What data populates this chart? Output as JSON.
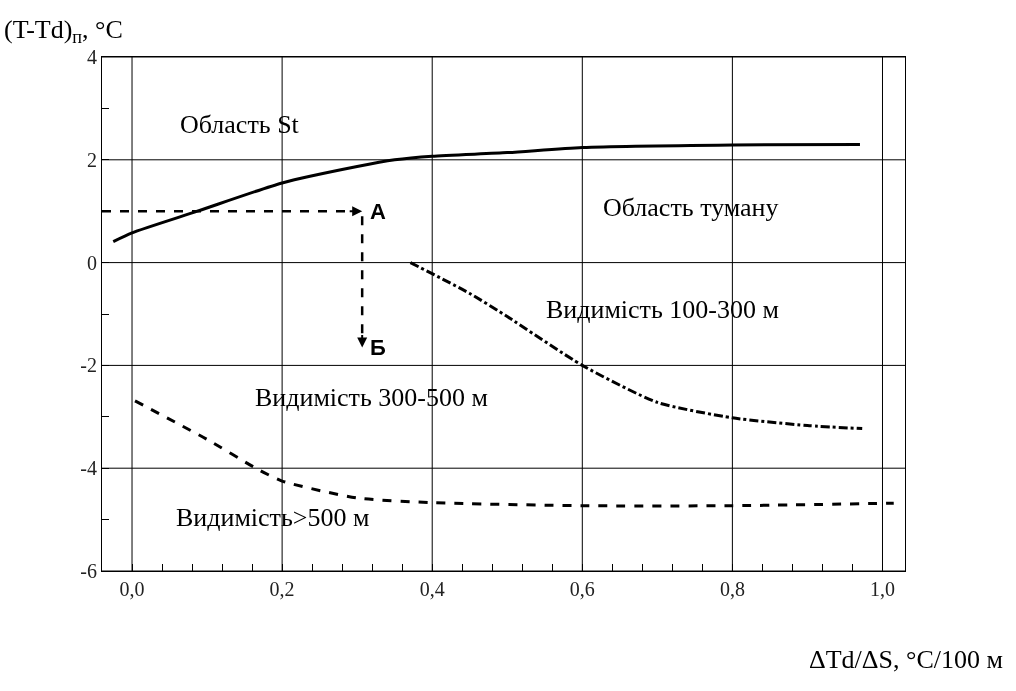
{
  "chart_data": {
    "type": "line",
    "xlabel": "ΔTd/ΔS, °C/100 м",
    "ylabel": "(T-Td)$_{п}$, °C",
    "xlim": [
      -0.04,
      1.03
    ],
    "ylim": [
      -6,
      4
    ],
    "xticks": [
      {
        "value": 0,
        "label": "0,0"
      },
      {
        "value": 0.04,
        "label": null
      },
      {
        "value": 0.08,
        "label": null
      },
      {
        "value": 0.12,
        "label": null
      },
      {
        "value": 0.16,
        "label": null
      },
      {
        "value": 0.2,
        "label": "0,2"
      },
      {
        "value": 0.24,
        "label": null
      },
      {
        "value": 0.28,
        "label": null
      },
      {
        "value": 0.32,
        "label": null
      },
      {
        "value": 0.36,
        "label": null
      },
      {
        "value": 0.4,
        "label": "0,4"
      },
      {
        "value": 0.44,
        "label": null
      },
      {
        "value": 0.48,
        "label": null
      },
      {
        "value": 0.52,
        "label": null
      },
      {
        "value": 0.56,
        "label": null
      },
      {
        "value": 0.6,
        "label": "0,6"
      },
      {
        "value": 0.64,
        "label": null
      },
      {
        "value": 0.68,
        "label": null
      },
      {
        "value": 0.72,
        "label": null
      },
      {
        "value": 0.76,
        "label": null
      },
      {
        "value": 0.8,
        "label": "0,8"
      },
      {
        "value": 0.84,
        "label": null
      },
      {
        "value": 0.88,
        "label": null
      },
      {
        "value": 0.92,
        "label": null
      },
      {
        "value": 0.96,
        "label": null
      },
      {
        "value": 1.0,
        "label": "1,0"
      }
    ],
    "yticks": [
      -6,
      {
        "value": -5,
        "label": null
      },
      -4,
      {
        "value": -3,
        "label": null
      },
      -2,
      {
        "value": -1,
        "label": null
      },
      0,
      {
        "value": 1,
        "label": null
      },
      2,
      {
        "value": 3,
        "label": null
      },
      4
    ],
    "grid": true,
    "series": [
      {
        "color": "#000000",
        "line_style": "solid",
        "x": [
          -0.025,
          0,
          0.087,
          0.2,
          0.3,
          0.35,
          0.4,
          0.5,
          0.6,
          0.8,
          0.97
        ],
        "values": [
          0.41,
          0.58,
          1.0,
          1.55,
          1.87,
          2.0,
          2.07,
          2.14,
          2.24,
          2.29,
          2.3
        ]
      },
      {
        "color": "#000000",
        "line_style": "dashdot",
        "x": [
          0.371,
          0.45,
          0.5,
          0.6,
          0.7,
          0.8,
          0.9,
          0.973
        ],
        "values": [
          0,
          -0.6,
          -1.05,
          -2.0,
          -2.72,
          -3.02,
          -3.17,
          -3.23
        ]
      },
      {
        "color": "#000000",
        "line_style": "dashed",
        "x": [
          0.004,
          0.1,
          0.165,
          0.2,
          0.3,
          0.4,
          0.6,
          0.8,
          1.015
        ],
        "values": [
          -2.69,
          -3.44,
          -4.0,
          -4.25,
          -4.58,
          -4.67,
          -4.73,
          -4.73,
          -4.68
        ]
      }
    ],
    "annotations": [
      "А",
      "Б",
      "Область St",
      "Область туману",
      "Видимість 100-300 м",
      "Видимість 300-500 м",
      "Видимість>500 м"
    ]
  }
}
